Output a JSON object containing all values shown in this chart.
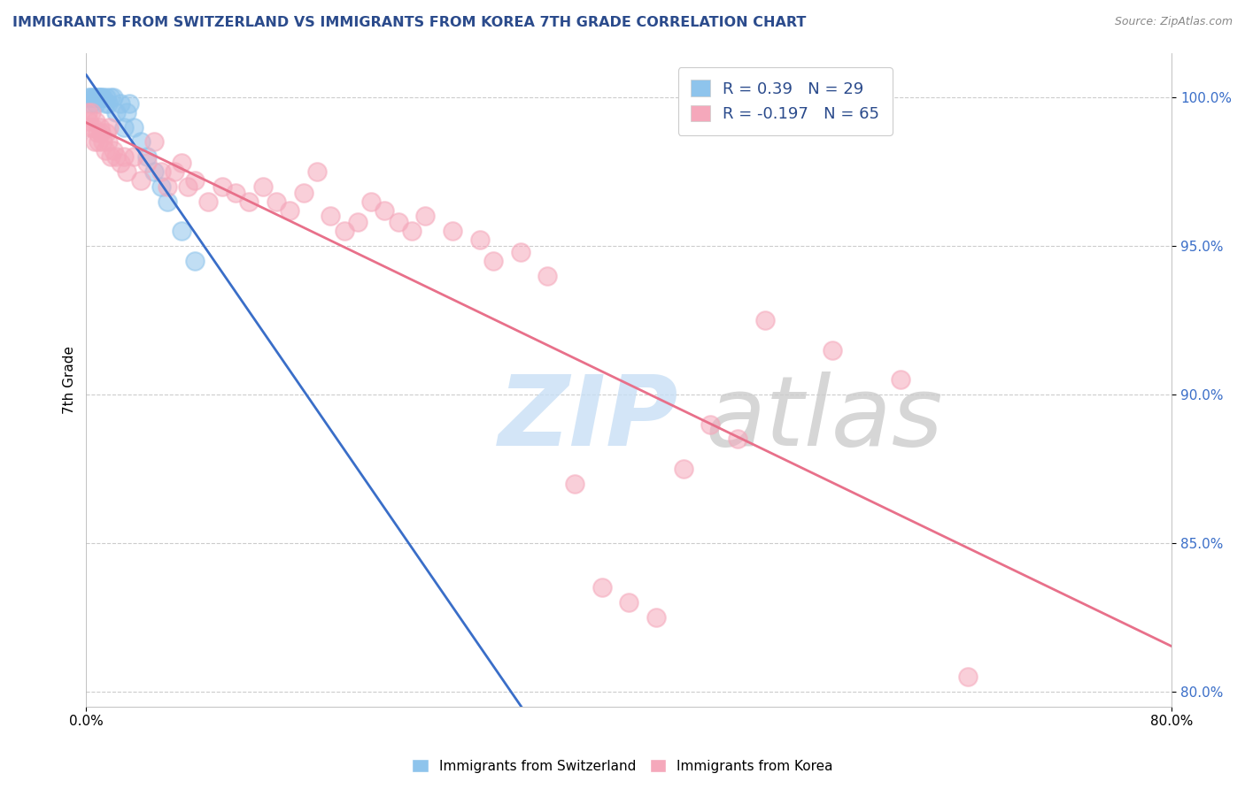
{
  "title": "IMMIGRANTS FROM SWITZERLAND VS IMMIGRANTS FROM KOREA 7TH GRADE CORRELATION CHART",
  "source": "Source: ZipAtlas.com",
  "ylabel": "7th Grade",
  "yticks": [
    80.0,
    85.0,
    90.0,
    95.0,
    100.0
  ],
  "ytick_labels": [
    "80.0%",
    "85.0%",
    "90.0%",
    "95.0%",
    "100.0%"
  ],
  "xlim": [
    0.0,
    80.0
  ],
  "ylim": [
    79.5,
    101.5
  ],
  "swiss_color": "#8EC4EC",
  "korea_color": "#F5A8BB",
  "swiss_line_color": "#3A6EC8",
  "korea_line_color": "#E8708A",
  "swiss_R": 0.39,
  "swiss_N": 29,
  "korea_R": -0.197,
  "korea_N": 65,
  "grid_color": "#CCCCCC",
  "swiss_x": [
    0.2,
    0.3,
    0.4,
    0.5,
    0.6,
    0.7,
    0.8,
    0.9,
    1.0,
    1.1,
    1.2,
    1.4,
    1.5,
    1.6,
    1.8,
    2.0,
    2.2,
    2.5,
    2.8,
    3.0,
    3.2,
    3.5,
    4.0,
    4.5,
    5.0,
    5.5,
    6.0,
    7.0,
    8.0
  ],
  "swiss_y": [
    100.0,
    100.0,
    99.8,
    100.0,
    100.0,
    99.8,
    100.0,
    100.0,
    100.0,
    100.0,
    100.0,
    99.8,
    100.0,
    99.8,
    100.0,
    100.0,
    99.5,
    99.8,
    99.0,
    99.5,
    99.8,
    99.0,
    98.5,
    98.0,
    97.5,
    97.0,
    96.5,
    95.5,
    94.5
  ],
  "korea_x": [
    0.1,
    0.2,
    0.3,
    0.4,
    0.5,
    0.6,
    0.7,
    0.8,
    0.9,
    1.0,
    1.1,
    1.2,
    1.4,
    1.5,
    1.6,
    1.7,
    1.8,
    2.0,
    2.2,
    2.5,
    2.8,
    3.0,
    3.5,
    4.0,
    4.5,
    5.0,
    5.5,
    6.0,
    6.5,
    7.0,
    7.5,
    8.0,
    9.0,
    10.0,
    11.0,
    12.0,
    13.0,
    14.0,
    15.0,
    16.0,
    17.0,
    18.0,
    19.0,
    20.0,
    21.0,
    22.0,
    23.0,
    24.0,
    25.0,
    27.0,
    29.0,
    30.0,
    32.0,
    34.0,
    36.0,
    38.0,
    40.0,
    42.0,
    44.0,
    46.0,
    48.0,
    50.0,
    55.0,
    60.0,
    65.0
  ],
  "korea_y": [
    99.5,
    99.2,
    99.0,
    99.5,
    99.0,
    98.5,
    99.2,
    98.8,
    98.5,
    99.0,
    98.8,
    98.5,
    98.2,
    98.8,
    98.5,
    99.0,
    98.0,
    98.2,
    98.0,
    97.8,
    98.0,
    97.5,
    98.0,
    97.2,
    97.8,
    98.5,
    97.5,
    97.0,
    97.5,
    97.8,
    97.0,
    97.2,
    96.5,
    97.0,
    96.8,
    96.5,
    97.0,
    96.5,
    96.2,
    96.8,
    97.5,
    96.0,
    95.5,
    95.8,
    96.5,
    96.2,
    95.8,
    95.5,
    96.0,
    95.5,
    95.2,
    94.5,
    94.8,
    94.0,
    87.0,
    83.5,
    83.0,
    82.5,
    87.5,
    89.0,
    88.5,
    92.5,
    91.5,
    90.5,
    80.5
  ]
}
